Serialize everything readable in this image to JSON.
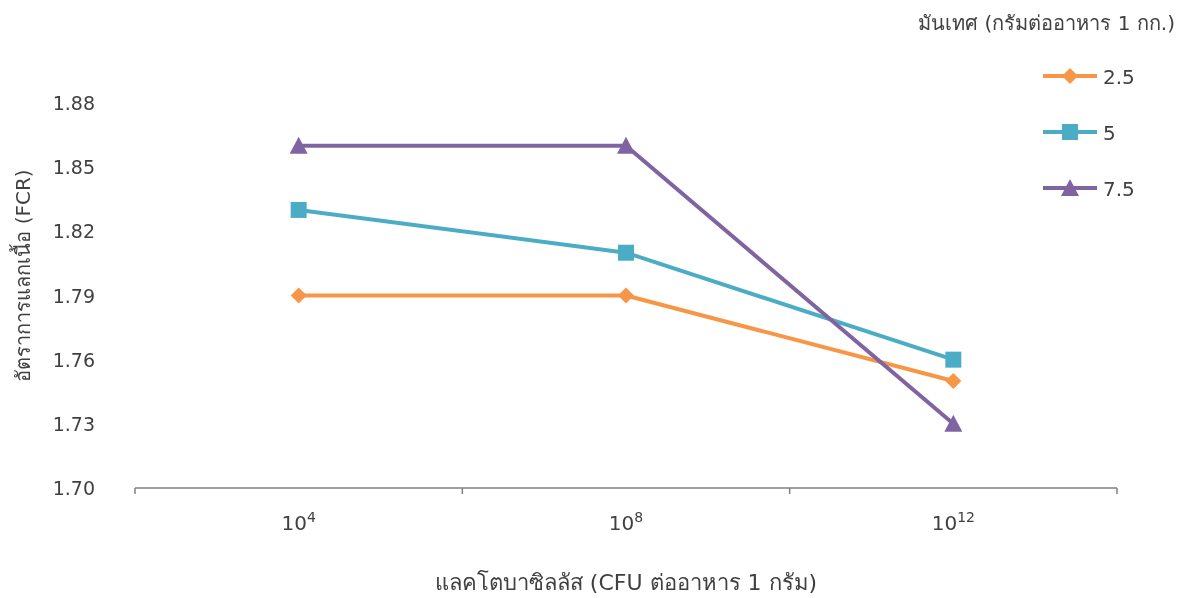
{
  "chart_data": {
    "type": "line",
    "xlabel": "แลคโตบาซิลลัส (CFU ต่ออาหาร 1 กรัม)",
    "ylabel": "อัตราการแลกเนื้อ (FCR)",
    "legend_title": "มันเทศ (กรัมต่ออาหาร 1 กก.)",
    "categories": [
      "10$^{4}$",
      "10$^{8}$",
      "10$^{12}$"
    ],
    "series": [
      {
        "name": "2.5",
        "color": "#f79646",
        "marker": "diamond",
        "values": [
          1.79,
          1.79,
          1.75
        ]
      },
      {
        "name": "5",
        "color": "#4bacc6",
        "marker": "square",
        "values": [
          1.83,
          1.81,
          1.76
        ]
      },
      {
        "name": "7.5",
        "color": "#8064a2",
        "marker": "triangle",
        "values": [
          1.86,
          1.86,
          1.73
        ]
      }
    ],
    "ylim": [
      1.7,
      1.88
    ],
    "yticks": [
      {
        "value": 1.7,
        "label": "1.70"
      },
      {
        "value": 1.73,
        "label": "1.73"
      },
      {
        "value": 1.76,
        "label": "1.76"
      },
      {
        "value": 1.79,
        "label": "1.79"
      },
      {
        "value": 1.82,
        "label": "1.82"
      },
      {
        "value": 1.85,
        "label": "1.85"
      },
      {
        "value": 1.88,
        "label": "1.88"
      }
    ],
    "grid": false,
    "legend": "top right",
    "line_style": "solid"
  }
}
